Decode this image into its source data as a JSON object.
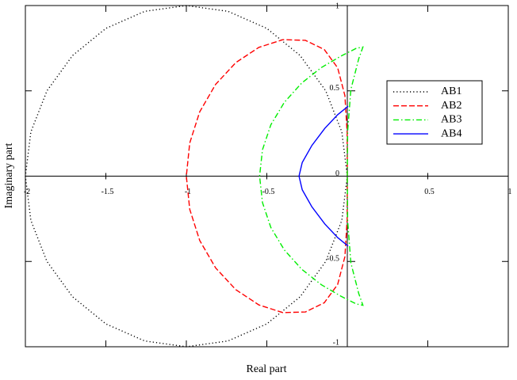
{
  "chart_data": {
    "type": "line",
    "x_label": "Real part",
    "y_label": "Imaginary part",
    "xlim": [
      -2,
      1
    ],
    "ylim": [
      -1,
      1
    ],
    "xticks": [
      -2,
      -1.5,
      -1,
      -0.5,
      0.5,
      1
    ],
    "yticks": [
      -1,
      -0.5,
      0,
      0.5,
      1
    ],
    "legend": "upper right",
    "series": [
      {
        "name": "AB1",
        "color": "#000000",
        "dash": "dotted",
        "x": [
          0,
          -0.034,
          -0.134,
          -0.293,
          -0.5,
          -0.741,
          -1,
          -1.259,
          -1.5,
          -1.707,
          -1.866,
          -1.966,
          -2,
          -1.966,
          -1.866,
          -1.707,
          -1.5,
          -1.259,
          -1,
          -0.741,
          -0.5,
          -0.293,
          -0.134,
          -0.034,
          0
        ],
        "values": [
          0,
          0.259,
          0.5,
          0.707,
          0.866,
          0.966,
          1,
          0.966,
          0.866,
          0.707,
          0.5,
          0.259,
          0,
          -0.259,
          -0.5,
          -0.707,
          -0.866,
          -0.966,
          -1,
          -0.966,
          -0.866,
          -0.707,
          -0.5,
          -0.259,
          0
        ]
      },
      {
        "name": "AB2",
        "color": "#ff0000",
        "dash": "dashed",
        "x": [
          0,
          -0.001,
          -0.015,
          -0.06,
          -0.143,
          -0.26,
          -0.4,
          -0.549,
          -0.692,
          -0.818,
          -0.917,
          -0.979,
          -1,
          -0.979,
          -0.917,
          -0.818,
          -0.692,
          -0.549,
          -0.4,
          -0.26,
          -0.143,
          -0.06,
          -0.015,
          -0.001,
          0
        ],
        "values": [
          0,
          0.255,
          0.472,
          0.635,
          0.742,
          0.796,
          0.8,
          0.755,
          0.666,
          0.538,
          0.377,
          0.194,
          0,
          -0.194,
          -0.377,
          -0.538,
          -0.666,
          -0.755,
          -0.8,
          -0.796,
          -0.742,
          -0.635,
          -0.472,
          -0.255,
          0
        ]
      },
      {
        "name": "AB3",
        "color": "#00ee00",
        "dash": "dashdot",
        "x": [
          0,
          0.002,
          0.022,
          0.071,
          0.097,
          0.055,
          -0.041,
          -0.162,
          -0.283,
          -0.391,
          -0.475,
          -0.527,
          -0.545,
          -0.527,
          -0.475,
          -0.391,
          -0.283,
          -0.162,
          -0.041,
          0.055,
          0.097,
          0.071,
          0.022,
          0.002,
          0
        ],
        "values": [
          0,
          0.261,
          0.508,
          0.688,
          0.757,
          0.749,
          0.703,
          0.636,
          0.546,
          0.433,
          0.301,
          0.155,
          0,
          -0.155,
          -0.301,
          -0.433,
          -0.546,
          -0.636,
          -0.703,
          -0.749,
          -0.757,
          -0.688,
          -0.508,
          -0.261,
          0
        ]
      },
      {
        "name": "AB4",
        "color": "#0000ff",
        "dash": "solid",
        "x": [
          0.005,
          -0.06,
          -0.14,
          -0.22,
          -0.28,
          -0.3,
          -0.28,
          -0.22,
          -0.14,
          -0.06,
          0.005
        ],
        "values": [
          0.41,
          0.36,
          0.28,
          0.18,
          0.08,
          0,
          -0.08,
          -0.18,
          -0.28,
          -0.36,
          -0.41
        ]
      }
    ]
  }
}
